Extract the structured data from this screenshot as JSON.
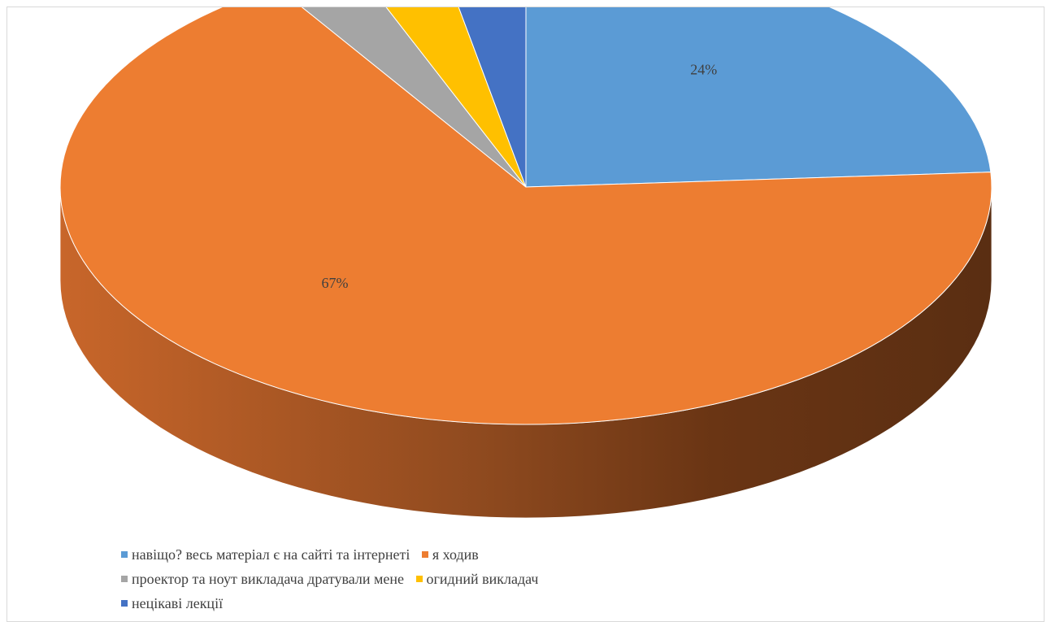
{
  "chart_data": {
    "type": "pie",
    "style": "3d",
    "title": "",
    "slices": [
      {
        "name": "навіщо? весь матеріал є на сайті та інтернеті",
        "value": 24,
        "label": "24%",
        "color": "#5b9bd5"
      },
      {
        "name": "я ходив",
        "value": 67,
        "label": "67%",
        "color": "#ed7d31"
      },
      {
        "name": "проектор та ноут викладача дратували мене",
        "value": 3,
        "label": "3%",
        "color": "#a5a5a5"
      },
      {
        "name": "огидний викладач",
        "value": 3,
        "label": "3%",
        "color": "#ffc000"
      },
      {
        "name": "нецікаві лекції",
        "value": 3,
        "label": "3%",
        "color": "#4472c4"
      }
    ],
    "legend_position": "bottom-left"
  }
}
